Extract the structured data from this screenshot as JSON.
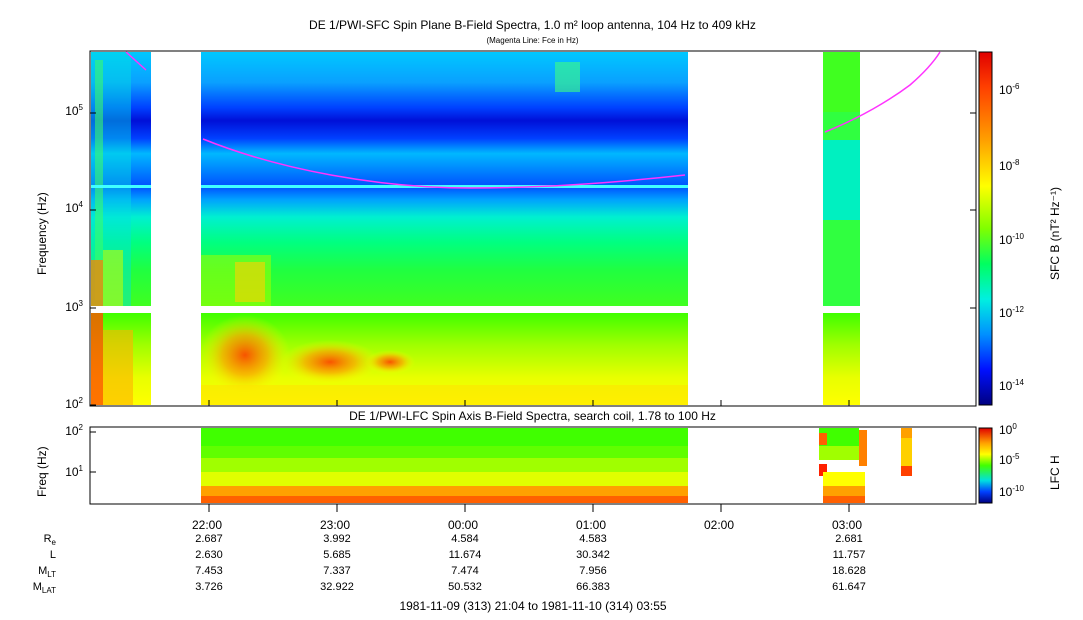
{
  "top_panel": {
    "title": "DE 1/PWI-SFC  Spin Plane B-Field Spectra, 1.0 m² loop antenna, 104 Hz to 409 kHz",
    "subtitle": "(Magenta Line: Fce in Hz)",
    "ylabel": "Frequency (Hz)",
    "yticks": [
      {
        "base": "10",
        "exp": "2"
      },
      {
        "base": "10",
        "exp": "3"
      },
      {
        "base": "10",
        "exp": "4"
      },
      {
        "base": "10",
        "exp": "5"
      }
    ],
    "colorbar_label": "SFC B (nT² Hz⁻¹)",
    "colorbar_ticks": [
      {
        "base": "10",
        "exp": "-6"
      },
      {
        "base": "10",
        "exp": "-8"
      },
      {
        "base": "10",
        "exp": "-10"
      },
      {
        "base": "10",
        "exp": "-12"
      },
      {
        "base": "10",
        "exp": "-14"
      }
    ]
  },
  "bottom_panel": {
    "title": "DE 1/PWI-LFC  Spin Axis B-Field Spectra, search coil, 1.78 to 100 Hz",
    "ylabel": "Freq (Hz)",
    "yticks": [
      {
        "base": "10",
        "exp": "2"
      },
      {
        "base": "10",
        "exp": "1"
      }
    ],
    "colorbar_label": "LFC H",
    "colorbar_ticks": [
      {
        "base": "10",
        "exp": "0"
      },
      {
        "base": "10",
        "exp": "-5"
      },
      {
        "base": "10",
        "exp": "-10"
      }
    ]
  },
  "time_axis": {
    "ticks": [
      "22:00",
      "23:00",
      "00:00",
      "01:00",
      "02:00",
      "03:00"
    ],
    "footer": "1981-11-09 (313) 21:04 to 1981-11-10 (314) 03:55"
  },
  "ephemeris": {
    "rows": [
      {
        "label": "R",
        "sub": "e",
        "values": [
          "2.687",
          "3.992",
          "4.584",
          "4.583",
          "",
          "2.681"
        ]
      },
      {
        "label": "L",
        "sub": "",
        "values": [
          "2.630",
          "5.685",
          "11.674",
          "30.342",
          "",
          "11.757"
        ]
      },
      {
        "label": "M",
        "sub": "LT",
        "values": [
          "7.453",
          "7.337",
          "7.474",
          "7.956",
          "",
          "18.628"
        ]
      },
      {
        "label": "M",
        "sub": "LAT",
        "values": [
          "3.726",
          "32.922",
          "50.532",
          "66.383",
          "",
          "61.647"
        ]
      }
    ]
  },
  "chart_data": {
    "type": "heatmap",
    "time_range": [
      "1981-11-09 21:04",
      "1981-11-10 03:55"
    ],
    "top_yscale": "log",
    "top_ylim": [
      100,
      409000
    ],
    "bottom_yscale": "log",
    "bottom_ylim": [
      1.78,
      100
    ],
    "fce_line_color": "#ff33ff",
    "fce_segments": [
      [
        [
          "21:20",
          409000
        ],
        [
          "21:31",
          260000
        ]
      ],
      [
        [
          "21:55",
          52000
        ],
        [
          "22:30",
          29000
        ],
        [
          "23:00",
          22000
        ],
        [
          "23:30",
          18000
        ],
        [
          "00:00",
          16500
        ],
        [
          "00:30",
          16000
        ],
        [
          "01:00",
          17500
        ],
        [
          "01:30",
          22000
        ]
      ],
      [
        [
          "02:53",
          60000
        ],
        [
          "03:10",
          90000
        ],
        [
          "03:25",
          140000
        ],
        [
          "03:37",
          220000
        ],
        [
          "03:45",
          320000
        ],
        [
          "03:49",
          409000
        ]
      ]
    ],
    "data_gaps": [
      [
        "21:31",
        "21:55"
      ],
      [
        "01:45",
        "02:48"
      ],
      [
        "03:05",
        "03:55"
      ]
    ],
    "colormap": [
      "#00008c",
      "#0000ff",
      "#0080ff",
      "#00e0ff",
      "#00ff80",
      "#40ff00",
      "#c0ff00",
      "#ffff00",
      "#ffa000",
      "#ff4000",
      "#d00000"
    ]
  }
}
